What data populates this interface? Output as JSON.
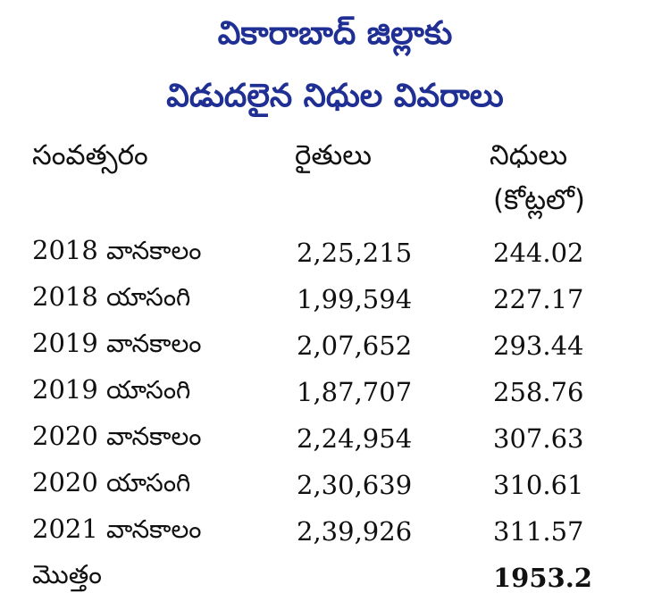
{
  "title": {
    "line1": "వికారాబాద్ జిల్లాకు",
    "line2": "విడుదలైన నిధుల వివరాలు"
  },
  "headers": {
    "year": "సంవత్సరం",
    "farmers": "రైతులు",
    "funds": "నిధులు",
    "funds_unit": "(కోట్లలో)"
  },
  "rows": [
    {
      "year": "2018",
      "season": "వానకాలం",
      "farmers": "2,25,215",
      "funds": "244.02"
    },
    {
      "year": "2018",
      "season": "యాసంగి",
      "farmers": "1,99,594",
      "funds": "227.17"
    },
    {
      "year": "2019",
      "season": "వానకాలం",
      "farmers": "2,07,652",
      "funds": "293.44"
    },
    {
      "year": "2019",
      "season": "యాసంగి",
      "farmers": "1,87,707",
      "funds": "258.76"
    },
    {
      "year": "2020",
      "season": "వానకాలం",
      "farmers": "2,24,954",
      "funds": "307.63"
    },
    {
      "year": "2020",
      "season": "యాసంగి",
      "farmers": "2,30,639",
      "funds": "310.61"
    },
    {
      "year": "2021",
      "season": "వానకాలం",
      "farmers": "2,39,926",
      "funds": "311.57"
    }
  ],
  "total": {
    "label": "మొత్తం",
    "farmers": "",
    "funds": "1953.2"
  },
  "colors": {
    "title": "#1f2f93",
    "text": "#111111",
    "background": "#ffffff"
  }
}
